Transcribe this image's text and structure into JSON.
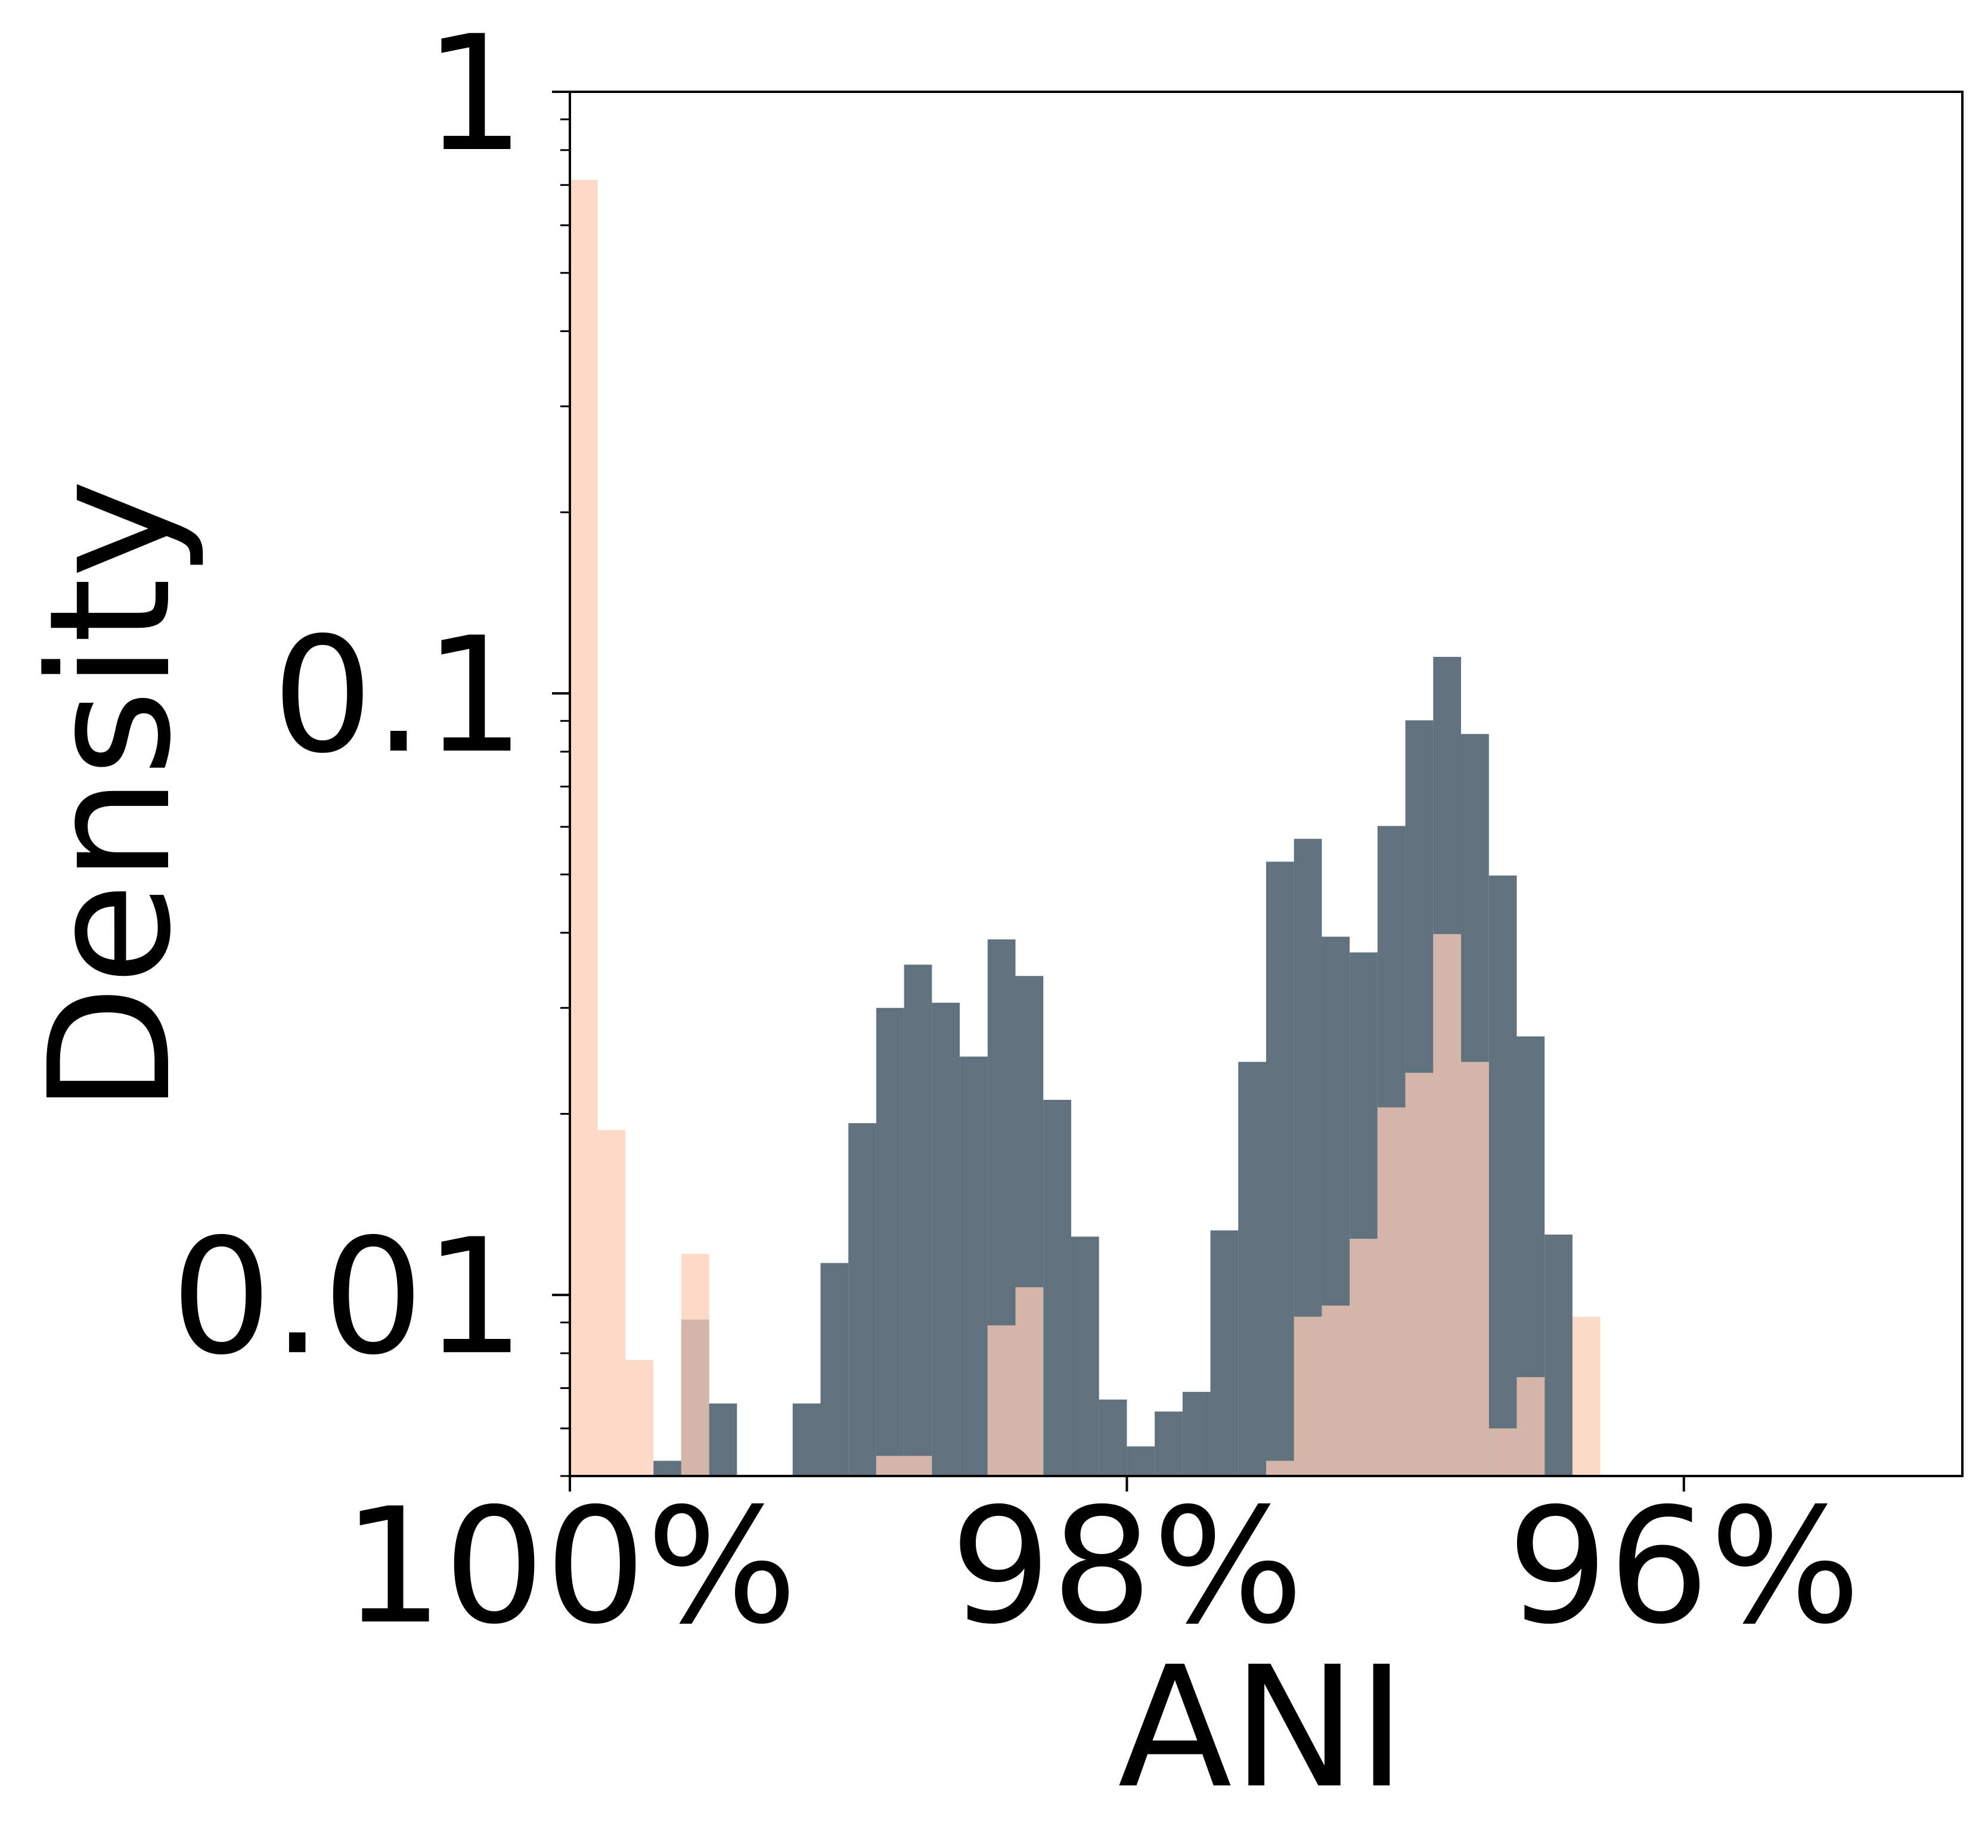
{
  "chart_data": {
    "type": "histogram",
    "xlabel": "ANI",
    "ylabel": "Density",
    "bins": [
      100,
      99.9,
      99.8,
      99.7,
      99.6,
      99.5,
      99.4,
      99.3,
      99.2,
      99.1,
      99,
      98.9,
      98.8,
      98.7,
      98.6,
      98.5,
      98.4,
      98.3,
      98.2,
      98.1,
      98,
      97.9,
      97.8,
      97.7,
      97.6,
      97.5,
      97.4,
      97.3,
      97.2,
      97.1,
      97,
      96.9,
      96.8,
      96.7,
      96.6,
      96.5,
      96.4,
      96.3,
      96.2,
      96.1,
      96,
      95.9,
      95.8,
      95.7,
      95.6,
      95.5,
      95.4,
      95.3,
      95.2,
      95.1,
      95
    ],
    "series": [
      {
        "color": "#5f727e",
        "opacity": 1,
        "values": [
          0,
          0,
          0,
          0.0053,
          0.0091,
          0.0066,
          0,
          0,
          0.0066,
          0.0113,
          0.0193,
          0.03,
          0.0354,
          0.0306,
          0.0249,
          0.039,
          0.0339,
          0.0211,
          0.0125,
          0.0067,
          0.0056,
          0.0064,
          0.0069,
          0.0128,
          0.0244,
          0.0525,
          0.0573,
          0.0394,
          0.0371,
          0.0602,
          0.0902,
          0.115,
          0.0856,
          0.0498,
          0.0269,
          0.0126,
          0,
          0,
          0,
          0,
          0,
          0,
          0,
          0,
          0,
          0,
          0,
          0,
          0,
          0
        ]
      },
      {
        "color": "#f9cdb5",
        "opacity": 0.75,
        "values": [
          0.714,
          0.0188,
          0.0078,
          0,
          0.0117,
          0,
          0,
          0,
          0,
          0,
          0,
          0.0054,
          0.0054,
          0,
          0,
          0.0089,
          0.0103,
          0,
          0,
          0,
          0,
          0,
          0,
          0,
          0,
          0.0053,
          0.0092,
          0.0096,
          0.0124,
          0.0205,
          0.0234,
          0.0398,
          0.0244,
          0.006,
          0.0073,
          0,
          0.0092,
          0,
          0,
          0,
          0,
          0,
          0,
          0,
          0,
          0,
          0,
          0,
          0,
          0
        ]
      }
    ],
    "xlim": [
      100,
      95
    ],
    "xticks": [
      {
        "value": 100,
        "label": "100%"
      },
      {
        "value": 98,
        "label": "98%"
      },
      {
        "value": 96,
        "label": "96%"
      }
    ],
    "ylim": [
      0.005,
      1
    ],
    "yticks": [
      0.01,
      0.1,
      1
    ],
    "ylog": true,
    "yminor_ticks": true
  }
}
